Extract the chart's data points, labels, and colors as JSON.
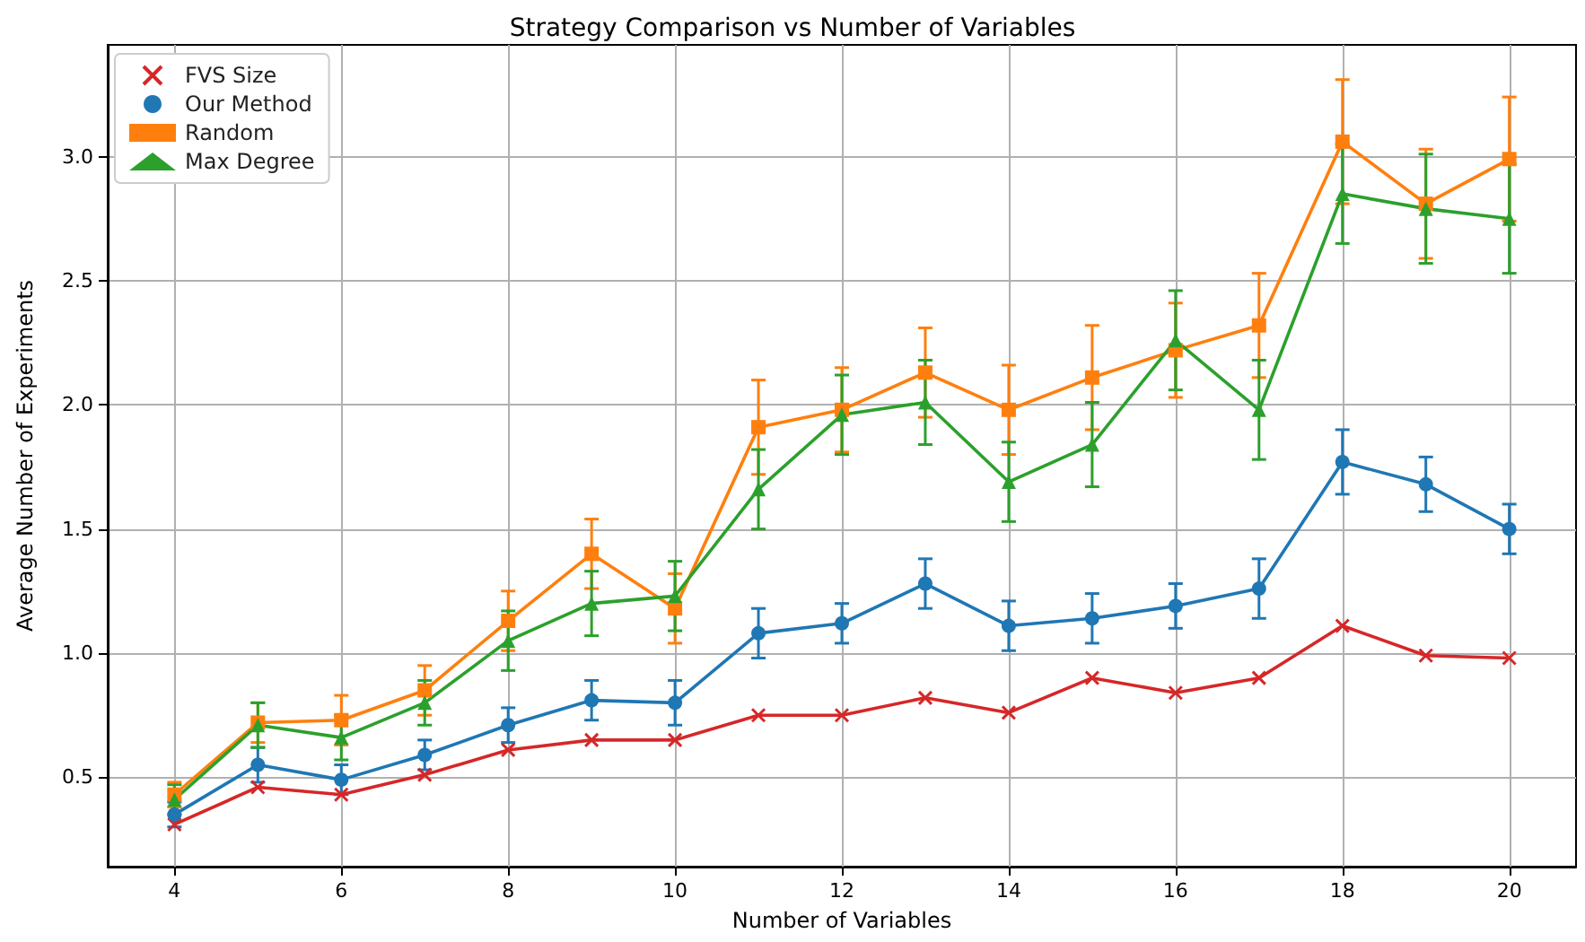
{
  "chart_data": {
    "type": "line",
    "title": "Strategy Comparison vs Number of Variables",
    "xlabel": "Number of Variables",
    "ylabel": "Average Number of Experiments",
    "x": [
      4,
      5,
      6,
      7,
      8,
      9,
      10,
      11,
      12,
      13,
      14,
      15,
      16,
      17,
      18,
      19,
      20
    ],
    "series": [
      {
        "name": "FVS Size",
        "color": "#d62728",
        "marker": "cross",
        "values": [
          0.31,
          0.46,
          0.43,
          0.51,
          0.61,
          0.65,
          0.65,
          0.75,
          0.75,
          0.82,
          0.76,
          0.9,
          0.84,
          0.9,
          1.11,
          0.99,
          0.98
        ]
      },
      {
        "name": "Our Method",
        "color": "#1f77b4",
        "marker": "circle",
        "values": [
          0.35,
          0.55,
          0.49,
          0.59,
          0.71,
          0.81,
          0.8,
          1.08,
          1.12,
          1.28,
          1.11,
          1.14,
          1.19,
          1.26,
          1.77,
          1.68,
          1.5
        ],
        "errors": [
          0.05,
          0.07,
          0.06,
          0.06,
          0.07,
          0.08,
          0.09,
          0.1,
          0.08,
          0.1,
          0.1,
          0.1,
          0.09,
          0.12,
          0.13,
          0.11,
          0.1
        ]
      },
      {
        "name": "Random",
        "color": "#ff7f0e",
        "marker": "square",
        "values": [
          0.43,
          0.72,
          0.73,
          0.85,
          1.13,
          1.4,
          1.18,
          1.91,
          1.98,
          2.13,
          1.98,
          2.11,
          2.22,
          2.32,
          3.06,
          2.81,
          2.99
        ],
        "errors": [
          0.05,
          0.08,
          0.1,
          0.1,
          0.12,
          0.14,
          0.14,
          0.19,
          0.17,
          0.18,
          0.18,
          0.21,
          0.19,
          0.21,
          0.25,
          0.22,
          0.25
        ]
      },
      {
        "name": "Max Degree",
        "color": "#2ca02c",
        "marker": "triangle",
        "values": [
          0.41,
          0.71,
          0.66,
          0.8,
          1.05,
          1.2,
          1.23,
          1.66,
          1.96,
          2.01,
          1.69,
          1.84,
          2.26,
          1.98,
          2.85,
          2.79,
          2.75
        ],
        "errors": [
          0.06,
          0.09,
          0.09,
          0.09,
          0.12,
          0.13,
          0.14,
          0.16,
          0.16,
          0.17,
          0.16,
          0.17,
          0.2,
          0.2,
          0.2,
          0.22,
          0.22
        ]
      }
    ],
    "xlim": [
      3.2,
      20.8
    ],
    "xticks": [
      4,
      6,
      8,
      10,
      12,
      14,
      16,
      18,
      20
    ],
    "ylim": [
      0.14,
      3.45
    ],
    "yticks": [
      0.5,
      {
        "value": 1,
        "label": "1.0"
      },
      1.5,
      {
        "value": 2,
        "label": "2.0"
      },
      2.5,
      {
        "value": 3,
        "label": "3.0"
      }
    ],
    "grid": true,
    "legend": "top left"
  }
}
